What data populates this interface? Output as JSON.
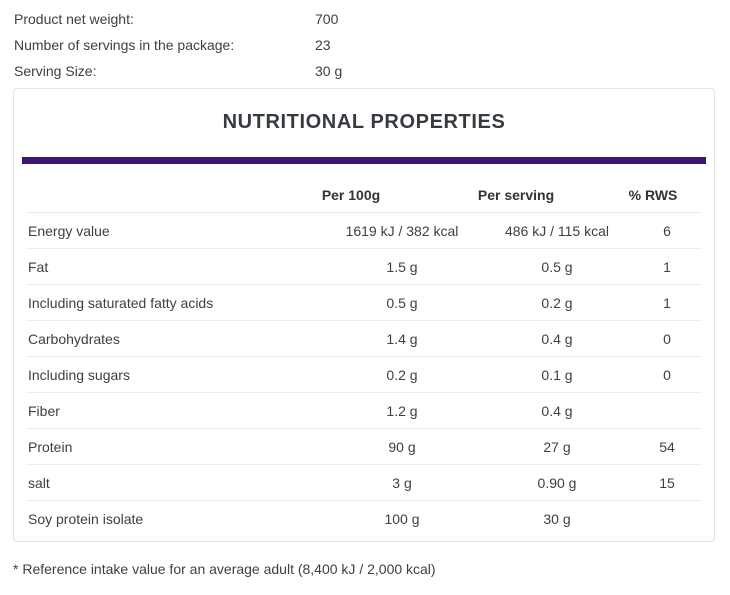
{
  "product_info": {
    "rows": [
      {
        "label": "Product net weight:",
        "value": "700"
      },
      {
        "label": "Number of servings in the package:",
        "value": "23"
      },
      {
        "label": "Serving Size:",
        "value": "30 g"
      }
    ]
  },
  "nutrition_panel": {
    "title": "NUTRITIONAL PROPERTIES",
    "accent_color": "#3e1478",
    "columns": [
      "",
      "Per 100g",
      "Per serving",
      "% RWS"
    ],
    "rows": [
      {
        "label": "Energy value",
        "per_100g": "1619 kJ / 382 kcal",
        "per_serving": "486 kJ / 115 kcal",
        "rws": "6"
      },
      {
        "label": "Fat",
        "per_100g": "1.5 g",
        "per_serving": "0.5 g",
        "rws": "1"
      },
      {
        "label": "Including saturated fatty acids",
        "per_100g": "0.5 g",
        "per_serving": "0.2 g",
        "rws": "1"
      },
      {
        "label": "Carbohydrates",
        "per_100g": "1.4 g",
        "per_serving": "0.4 g",
        "rws": "0"
      },
      {
        "label": "Including sugars",
        "per_100g": "0.2 g",
        "per_serving": "0.1 g",
        "rws": "0"
      },
      {
        "label": "Fiber",
        "per_100g": "1.2 g",
        "per_serving": "0.4 g",
        "rws": ""
      },
      {
        "label": "Protein",
        "per_100g": "90 g",
        "per_serving": "27 g",
        "rws": "54"
      },
      {
        "label": "salt",
        "per_100g": "3 g",
        "per_serving": "0.90 g",
        "rws": "15"
      },
      {
        "label": "Soy protein isolate",
        "per_100g": "100 g",
        "per_serving": "30 g",
        "rws": ""
      }
    ]
  },
  "footnote": "* Reference intake value for an average adult (8,400 kJ / 2,000 kcal)"
}
